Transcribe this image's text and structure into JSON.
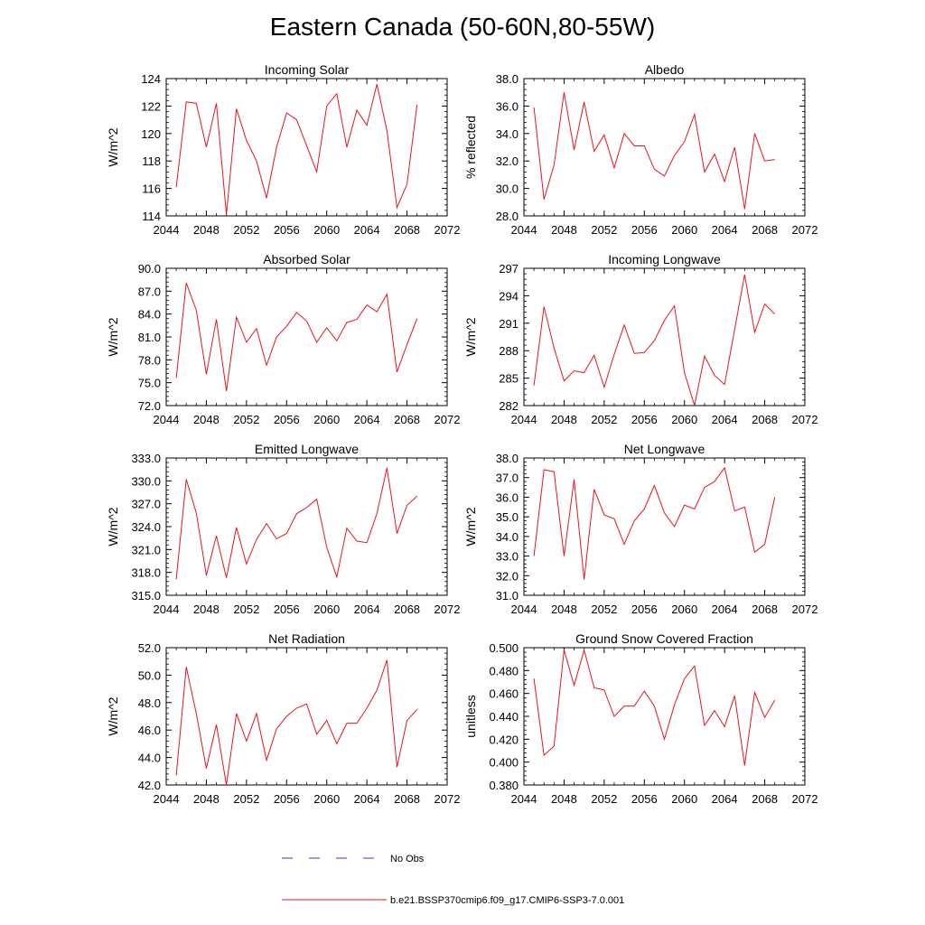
{
  "title": "Eastern Canada (50-60N,80-55W)",
  "legend": {
    "obs_label": "No Obs",
    "model_label": "b.e21.BSSP370cmip6.f09_g17.CMIP6-SSP3-7.0.001",
    "obs_color": "#3a3ab0",
    "model_color": "#e8141e"
  },
  "chart_data": [
    {
      "type": "line",
      "title": "Incoming Solar",
      "ylabel": "W/m^2",
      "xlim": [
        2044,
        2072
      ],
      "ylim": [
        114,
        124
      ],
      "xticks": [
        2044,
        2048,
        2052,
        2056,
        2060,
        2064,
        2068,
        2072
      ],
      "xtick_labels": [
        "2044",
        "2048",
        "2052",
        "2056",
        "2060",
        "2064",
        "2068",
        "2072"
      ],
      "yticks": [
        114,
        116,
        118,
        120,
        122,
        124
      ],
      "ytick_labels": [
        "114",
        "116",
        "118",
        "120",
        "122",
        "124"
      ],
      "x": [
        2045,
        2046,
        2047,
        2048,
        2049,
        2050,
        2051,
        2052,
        2053,
        2054,
        2055,
        2056,
        2057,
        2058,
        2059,
        2060,
        2061,
        2062,
        2063,
        2064,
        2065,
        2066,
        2067,
        2068,
        2069
      ],
      "series": [
        {
          "name": "b.e21.BSSP370cmip6.f09_g17.CMIP6-SSP3-7.0.001",
          "values": [
            116.1,
            122.3,
            122.2,
            119.0,
            122.2,
            114.1,
            121.8,
            119.5,
            118.0,
            115.3,
            119.0,
            121.5,
            121.0,
            119.1,
            117.2,
            122.0,
            122.9,
            119.0,
            121.7,
            120.6,
            123.6,
            120.2,
            114.6,
            116.3,
            122.1
          ]
        }
      ]
    },
    {
      "type": "line",
      "title": "Albedo",
      "ylabel": "% reflected",
      "xlim": [
        2044,
        2072
      ],
      "ylim": [
        28,
        38
      ],
      "xticks": [
        2044,
        2048,
        2052,
        2056,
        2060,
        2064,
        2068,
        2072
      ],
      "xtick_labels": [
        "2044",
        "2048",
        "2052",
        "2056",
        "2060",
        "2064",
        "2068",
        "2072"
      ],
      "yticks": [
        28,
        30,
        32,
        34,
        36,
        38
      ],
      "ytick_labels": [
        "28.0",
        "30.0",
        "32.0",
        "34.0",
        "36.0",
        "38.0"
      ],
      "x": [
        2045,
        2046,
        2047,
        2048,
        2049,
        2050,
        2051,
        2052,
        2053,
        2054,
        2055,
        2056,
        2057,
        2058,
        2059,
        2060,
        2061,
        2062,
        2063,
        2064,
        2065,
        2066,
        2067,
        2068,
        2069
      ],
      "series": [
        {
          "name": "b.e21.BSSP370cmip6.f09_g17.CMIP6-SSP3-7.0.001",
          "values": [
            35.9,
            29.2,
            31.7,
            37.0,
            32.8,
            36.3,
            32.7,
            33.9,
            31.5,
            34.0,
            33.1,
            33.1,
            31.4,
            30.9,
            32.4,
            33.4,
            35.4,
            31.2,
            32.5,
            30.5,
            33.0,
            28.5,
            34.0,
            32.0,
            32.1
          ]
        }
      ]
    },
    {
      "type": "line",
      "title": "Absorbed Solar",
      "ylabel": "W/m^2",
      "xlim": [
        2044,
        2072
      ],
      "ylim": [
        72,
        90
      ],
      "xticks": [
        2044,
        2048,
        2052,
        2056,
        2060,
        2064,
        2068,
        2072
      ],
      "xtick_labels": [
        "2044",
        "2048",
        "2052",
        "2056",
        "2060",
        "2064",
        "2068",
        "2072"
      ],
      "yticks": [
        72,
        75,
        78,
        81,
        84,
        87,
        90
      ],
      "ytick_labels": [
        "72.0",
        "75.0",
        "78.0",
        "81.0",
        "84.0",
        "87.0",
        "90.0"
      ],
      "x": [
        2045,
        2046,
        2047,
        2048,
        2049,
        2050,
        2051,
        2052,
        2053,
        2054,
        2055,
        2056,
        2057,
        2058,
        2059,
        2060,
        2061,
        2062,
        2063,
        2064,
        2065,
        2066,
        2067,
        2068,
        2069
      ],
      "series": [
        {
          "name": "b.e21.BSSP370cmip6.f09_g17.CMIP6-SSP3-7.0.001",
          "values": [
            75.6,
            88.1,
            84.5,
            76.1,
            83.3,
            73.9,
            83.6,
            80.3,
            82.1,
            77.3,
            81.0,
            82.4,
            84.2,
            83.1,
            80.3,
            82.2,
            80.5,
            82.9,
            83.3,
            85.2,
            84.3,
            86.6,
            76.4,
            80.0,
            83.4
          ]
        }
      ]
    },
    {
      "type": "line",
      "title": "Incoming Longwave",
      "ylabel": "W/m^2",
      "xlim": [
        2044,
        2072
      ],
      "ylim": [
        282,
        297
      ],
      "xticks": [
        2044,
        2048,
        2052,
        2056,
        2060,
        2064,
        2068,
        2072
      ],
      "xtick_labels": [
        "2044",
        "2048",
        "2052",
        "2056",
        "2060",
        "2064",
        "2068",
        "2072"
      ],
      "yticks": [
        282,
        285,
        288,
        291,
        294,
        297
      ],
      "ytick_labels": [
        "282",
        "285",
        "288",
        "291",
        "294",
        "297"
      ],
      "x": [
        2045,
        2046,
        2047,
        2048,
        2049,
        2050,
        2051,
        2052,
        2053,
        2054,
        2055,
        2056,
        2057,
        2058,
        2059,
        2060,
        2061,
        2062,
        2063,
        2064,
        2065,
        2066,
        2067,
        2068,
        2069
      ],
      "series": [
        {
          "name": "b.e21.BSSP370cmip6.f09_g17.CMIP6-SSP3-7.0.001",
          "values": [
            284.2,
            292.8,
            288.3,
            284.7,
            285.8,
            285.6,
            287.5,
            284.0,
            287.6,
            290.8,
            287.7,
            287.8,
            289.1,
            291.3,
            292.9,
            285.6,
            282.0,
            287.4,
            285.3,
            284.3,
            290.3,
            296.3,
            290.0,
            293.1,
            292.0
          ]
        }
      ]
    },
    {
      "type": "line",
      "title": "Emitted Longwave",
      "ylabel": "W/m^2",
      "xlim": [
        2044,
        2072
      ],
      "ylim": [
        315,
        333
      ],
      "xticks": [
        2044,
        2048,
        2052,
        2056,
        2060,
        2064,
        2068,
        2072
      ],
      "xtick_labels": [
        "2044",
        "2048",
        "2052",
        "2056",
        "2060",
        "2064",
        "2068",
        "2072"
      ],
      "yticks": [
        315,
        318,
        321,
        324,
        327,
        330,
        333
      ],
      "ytick_labels": [
        "315.0",
        "318.0",
        "321.0",
        "324.0",
        "327.0",
        "330.0",
        "333.0"
      ],
      "x": [
        2045,
        2046,
        2047,
        2048,
        2049,
        2050,
        2051,
        2052,
        2053,
        2054,
        2055,
        2056,
        2057,
        2058,
        2059,
        2060,
        2061,
        2062,
        2063,
        2064,
        2065,
        2066,
        2067,
        2068,
        2069
      ],
      "series": [
        {
          "name": "b.e21.BSSP370cmip6.f09_g17.CMIP6-SSP3-7.0.001",
          "values": [
            317.1,
            330.2,
            325.8,
            317.6,
            322.8,
            317.3,
            323.9,
            319.1,
            322.3,
            324.4,
            322.4,
            323.1,
            325.7,
            326.5,
            327.6,
            321.3,
            317.4,
            323.8,
            322.1,
            321.9,
            325.7,
            331.7,
            323.1,
            326.8,
            328.0
          ]
        }
      ]
    },
    {
      "type": "line",
      "title": "Net Longwave",
      "ylabel": "W/m^2",
      "xlim": [
        2044,
        2072
      ],
      "ylim": [
        31,
        38
      ],
      "xticks": [
        2044,
        2048,
        2052,
        2056,
        2060,
        2064,
        2068,
        2072
      ],
      "xtick_labels": [
        "2044",
        "2048",
        "2052",
        "2056",
        "2060",
        "2064",
        "2068",
        "2072"
      ],
      "yticks": [
        31,
        32,
        33,
        34,
        35,
        36,
        37,
        38
      ],
      "ytick_labels": [
        "31.0",
        "32.0",
        "33.0",
        "34.0",
        "35.0",
        "36.0",
        "37.0",
        "38.0"
      ],
      "x": [
        2045,
        2046,
        2047,
        2048,
        2049,
        2050,
        2051,
        2052,
        2053,
        2054,
        2055,
        2056,
        2057,
        2058,
        2059,
        2060,
        2061,
        2062,
        2063,
        2064,
        2065,
        2066,
        2067,
        2068,
        2069
      ],
      "series": [
        {
          "name": "b.e21.BSSP370cmip6.f09_g17.CMIP6-SSP3-7.0.001",
          "values": [
            33.0,
            37.4,
            37.3,
            33.0,
            36.9,
            31.8,
            36.4,
            35.1,
            34.9,
            33.6,
            34.8,
            35.4,
            36.6,
            35.2,
            34.5,
            35.6,
            35.4,
            36.5,
            36.8,
            37.5,
            35.3,
            35.5,
            33.2,
            33.6,
            36.0
          ]
        }
      ]
    },
    {
      "type": "line",
      "title": "Net Radiation",
      "ylabel": "W/m^2",
      "xlim": [
        2044,
        2072
      ],
      "ylim": [
        42,
        52
      ],
      "xticks": [
        2044,
        2048,
        2052,
        2056,
        2060,
        2064,
        2068,
        2072
      ],
      "xtick_labels": [
        "2044",
        "2048",
        "2052",
        "2056",
        "2060",
        "2064",
        "2068",
        "2072"
      ],
      "yticks": [
        42,
        44,
        46,
        48,
        50,
        52
      ],
      "ytick_labels": [
        "42.0",
        "44.0",
        "46.0",
        "48.0",
        "50.0",
        "52.0"
      ],
      "x": [
        2045,
        2046,
        2047,
        2048,
        2049,
        2050,
        2051,
        2052,
        2053,
        2054,
        2055,
        2056,
        2057,
        2058,
        2059,
        2060,
        2061,
        2062,
        2063,
        2064,
        2065,
        2066,
        2067,
        2068,
        2069
      ],
      "series": [
        {
          "name": "b.e21.BSSP370cmip6.f09_g17.CMIP6-SSP3-7.0.001",
          "values": [
            42.7,
            50.6,
            47.2,
            43.2,
            46.4,
            42.0,
            47.2,
            45.2,
            47.2,
            43.8,
            46.1,
            47.0,
            47.6,
            47.9,
            45.7,
            46.7,
            45.0,
            46.5,
            46.5,
            47.6,
            48.9,
            51.1,
            43.3,
            46.7,
            47.5
          ]
        }
      ]
    },
    {
      "type": "line",
      "title": "Ground Snow Covered Fraction",
      "ylabel": "unitless",
      "xlim": [
        2044,
        2072
      ],
      "ylim": [
        0.38,
        0.5
      ],
      "xticks": [
        2044,
        2048,
        2052,
        2056,
        2060,
        2064,
        2068,
        2072
      ],
      "xtick_labels": [
        "2044",
        "2048",
        "2052",
        "2056",
        "2060",
        "2064",
        "2068",
        "2072"
      ],
      "yticks": [
        0.38,
        0.4,
        0.42,
        0.44,
        0.46,
        0.48,
        0.5
      ],
      "ytick_labels": [
        "0.380",
        "0.400",
        "0.420",
        "0.440",
        "0.460",
        "0.480",
        "0.500"
      ],
      "x": [
        2045,
        2046,
        2047,
        2048,
        2049,
        2050,
        2051,
        2052,
        2053,
        2054,
        2055,
        2056,
        2057,
        2058,
        2059,
        2060,
        2061,
        2062,
        2063,
        2064,
        2065,
        2066,
        2067,
        2068,
        2069
      ],
      "series": [
        {
          "name": "b.e21.BSSP370cmip6.f09_g17.CMIP6-SSP3-7.0.001",
          "values": [
            0.473,
            0.406,
            0.414,
            0.498,
            0.467,
            0.498,
            0.465,
            0.463,
            0.44,
            0.449,
            0.449,
            0.462,
            0.449,
            0.42,
            0.45,
            0.473,
            0.484,
            0.432,
            0.445,
            0.431,
            0.458,
            0.397,
            0.461,
            0.439,
            0.454
          ]
        }
      ]
    }
  ]
}
